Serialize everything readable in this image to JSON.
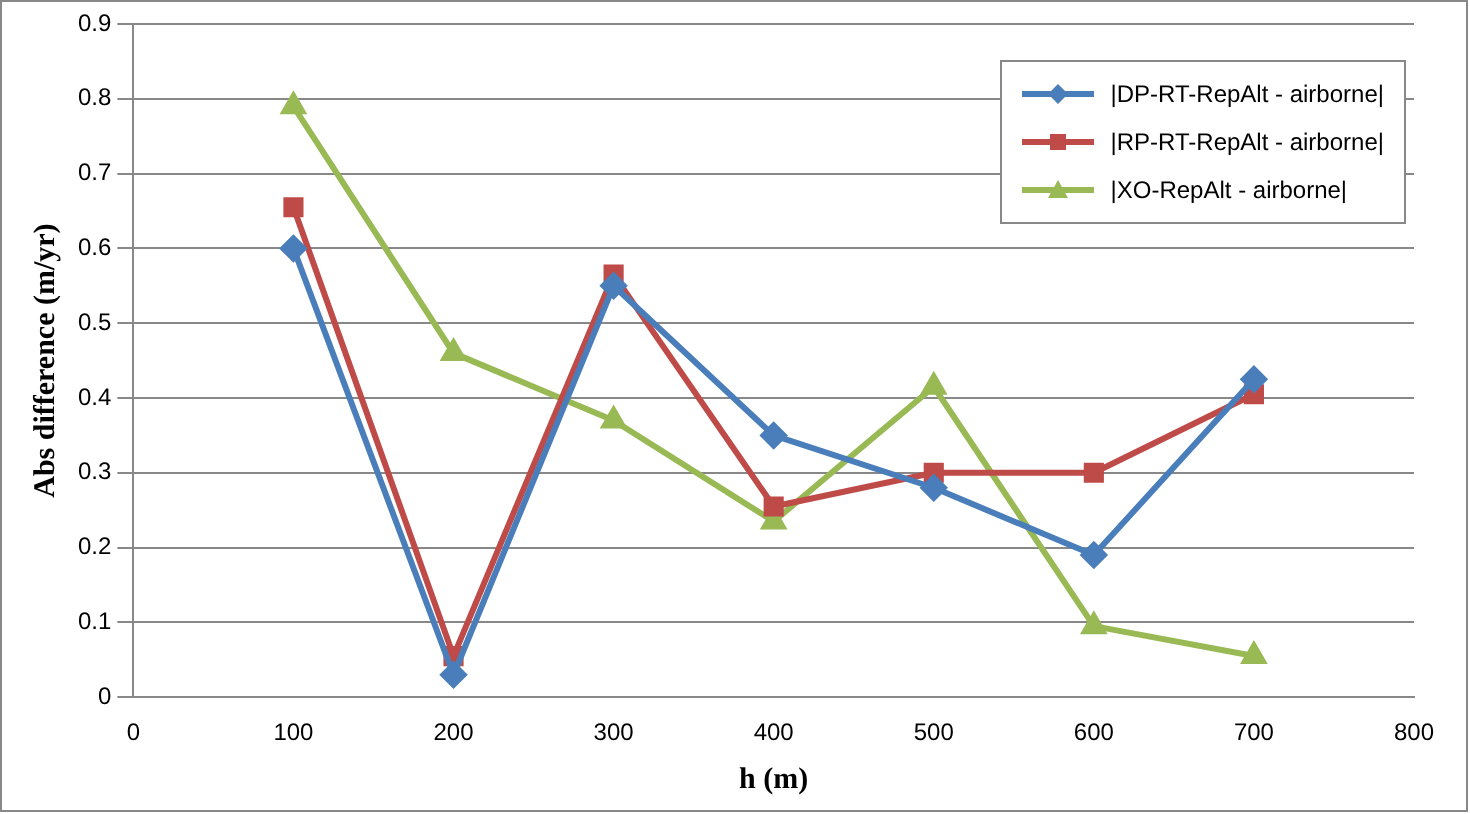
{
  "chart_data": {
    "type": "line",
    "xlabel": "h (m)",
    "ylabel": "Abs difference (m/yr)",
    "x": [
      100,
      200,
      300,
      400,
      500,
      600,
      700
    ],
    "series": [
      {
        "name": "|DP-RT-RepAlt - airborne|",
        "color": "#4a7ebb",
        "marker": "diamond",
        "values": [
          0.6,
          0.03,
          0.55,
          0.35,
          0.28,
          0.19,
          0.425
        ]
      },
      {
        "name": "|RP-RT-RepAlt - airborne|",
        "color": "#be4b48",
        "marker": "square",
        "values": [
          0.655,
          0.055,
          0.565,
          0.255,
          0.3,
          0.3,
          0.405
        ]
      },
      {
        "name": "|XO-RepAlt - airborne|",
        "color": "#98b954",
        "marker": "triangle",
        "values": [
          0.79,
          0.46,
          0.37,
          0.235,
          0.415,
          0.095,
          0.055
        ]
      }
    ],
    "xlim": [
      0,
      800
    ],
    "xticks": [
      0,
      100,
      200,
      300,
      400,
      500,
      600,
      700,
      800
    ],
    "ylim": [
      0,
      0.9
    ],
    "yticks": [
      0,
      0.1,
      0.2,
      0.3,
      0.4,
      0.5,
      0.6,
      0.7,
      0.8,
      0.9
    ],
    "grid": "y",
    "legend": "top right",
    "line_style": "solid"
  }
}
